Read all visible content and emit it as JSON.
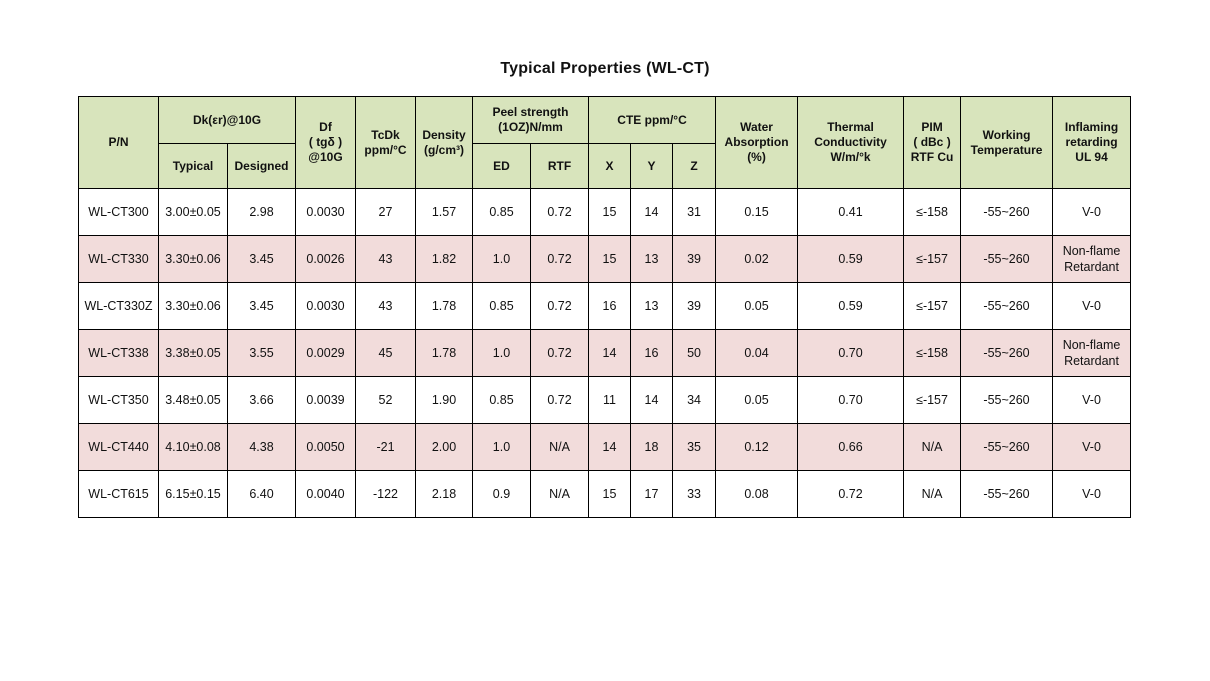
{
  "title": "Typical Properties (WL-CT)",
  "colors": {
    "header_bg": "#d8e4bc",
    "row_alt_bg": "#f2dcdb",
    "border": "#000000",
    "text": "#111111"
  },
  "table": {
    "header": {
      "pn": "P/N",
      "dk_group": "Dk(εr)@10G",
      "dk_typical": "Typical",
      "dk_designed": "Designed",
      "df": [
        "Df",
        "( tgδ )",
        "@10G"
      ],
      "tcdk": [
        "TcDk",
        "ppm/°C"
      ],
      "density": [
        "Density",
        "(g/cm³)"
      ],
      "peel_group": [
        "Peel strength",
        "(1OZ)N/mm"
      ],
      "peel_ed": "ED",
      "peel_rtf": "RTF",
      "cte_group": "CTE ppm/°C",
      "cte_x": "X",
      "cte_y": "Y",
      "cte_z": "Z",
      "water": [
        "Water",
        "Absorption",
        "(%)"
      ],
      "thermal": [
        "Thermal",
        "Conductivity",
        "W/m/°k"
      ],
      "pim": [
        "PIM",
        "( dBc )",
        "RTF Cu"
      ],
      "working": [
        "Working",
        "Temperature"
      ],
      "inflaming": [
        "Inflaming",
        "retarding",
        "UL 94"
      ]
    },
    "rows": [
      {
        "pn": "WL-CT300",
        "highlight": false,
        "cells": [
          "3.00±0.05",
          "2.98",
          "0.0030",
          "27",
          "1.57",
          "0.85",
          "0.72",
          "15",
          "14",
          "31",
          "0.15",
          "0.41",
          "≤-158",
          "-55~260",
          "V-0"
        ]
      },
      {
        "pn": "WL-CT330",
        "highlight": true,
        "cells": [
          "3.30±0.06",
          "3.45",
          "0.0026",
          "43",
          "1.82",
          "1.0",
          "0.72",
          "15",
          "13",
          "39",
          "0.02",
          "0.59",
          "≤-157",
          "-55~260",
          "Non-flame Retardant"
        ]
      },
      {
        "pn": "WL-CT330Z",
        "highlight": false,
        "cells": [
          "3.30±0.06",
          "3.45",
          "0.0030",
          "43",
          "1.78",
          "0.85",
          "0.72",
          "16",
          "13",
          "39",
          "0.05",
          "0.59",
          "≤-157",
          "-55~260",
          "V-0"
        ]
      },
      {
        "pn": "WL-CT338",
        "highlight": true,
        "cells": [
          "3.38±0.05",
          "3.55",
          "0.0029",
          "45",
          "1.78",
          "1.0",
          "0.72",
          "14",
          "16",
          "50",
          "0.04",
          "0.70",
          "≤-158",
          "-55~260",
          "Non-flame Retardant"
        ]
      },
      {
        "pn": "WL-CT350",
        "highlight": false,
        "cells": [
          "3.48±0.05",
          "3.66",
          "0.0039",
          "52",
          "1.90",
          "0.85",
          "0.72",
          "11",
          "14",
          "34",
          "0.05",
          "0.70",
          "≤-157",
          "-55~260",
          "V-0"
        ]
      },
      {
        "pn": "WL-CT440",
        "highlight": true,
        "cells": [
          "4.10±0.08",
          "4.38",
          "0.0050",
          "-21",
          "2.00",
          "1.0",
          "N/A",
          "14",
          "18",
          "35",
          "0.12",
          "0.66",
          "N/A",
          "-55~260",
          "V-0"
        ]
      },
      {
        "pn": "WL-CT615",
        "highlight": false,
        "cells": [
          "6.15±0.15",
          "6.40",
          "0.0040",
          "-122",
          "2.18",
          "0.9",
          "N/A",
          "15",
          "17",
          "33",
          "0.08",
          "0.72",
          "N/A",
          "-55~260",
          "V-0"
        ]
      }
    ]
  }
}
